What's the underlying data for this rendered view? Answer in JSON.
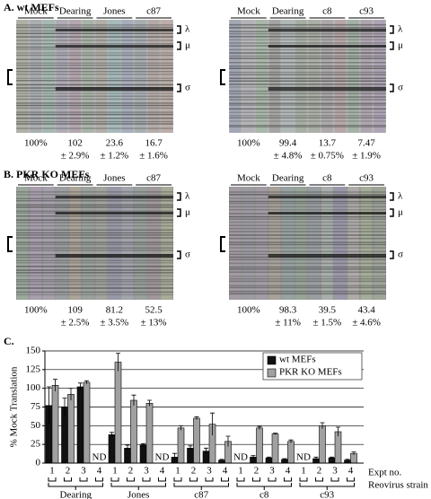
{
  "panels": [
    {
      "title": "A. wt MEFs",
      "bands": [
        "λ",
        "μ",
        "σ"
      ],
      "gels": [
        {
          "lanes": [
            {
              "label": "Mock",
              "value": "100%"
            },
            {
              "label": "Dearing",
              "value": "102",
              "error": "± 2.9%"
            },
            {
              "label": "Jones",
              "value": "23.6",
              "error": "± 1.2%"
            },
            {
              "label": "c87",
              "value": "16.7",
              "error": "± 1.6%"
            }
          ]
        },
        {
          "lanes": [
            {
              "label": "Mock",
              "value": "100%"
            },
            {
              "label": "Dearing",
              "value": "99.4",
              "error": "± 4.8%"
            },
            {
              "label": "c8",
              "value": "13.7",
              "error": "± 0.75%"
            },
            {
              "label": "c93",
              "value": "7.47",
              "error": "± 1.9%"
            }
          ]
        }
      ]
    },
    {
      "title": "B. PKR KO MEFs",
      "bands": [
        "λ",
        "μ",
        "σ"
      ],
      "gels": [
        {
          "lanes": [
            {
              "label": "Mock",
              "value": "100%"
            },
            {
              "label": "Dearing",
              "value": "109",
              "error": "± 2.5%"
            },
            {
              "label": "Jones",
              "value": "81.2",
              "error": "± 3.5%"
            },
            {
              "label": "c87",
              "value": "52.5",
              "error": "± 13%"
            }
          ]
        },
        {
          "lanes": [
            {
              "label": "Mock",
              "value": "100%"
            },
            {
              "label": "Dearing",
              "value": "98.3",
              "error": "± 11%"
            },
            {
              "label": "c8",
              "value": "39.5",
              "error": "± 1.5%"
            },
            {
              "label": "c93",
              "value": "43.4",
              "error": "± 4.6%"
            }
          ]
        }
      ]
    }
  ],
  "chart_data": {
    "type": "bar",
    "title": "C.",
    "ylabel": "% Mock Translation",
    "xlabel": "Expt no.",
    "group_axis_label": "Reovirus strain",
    "group_labels": [
      "Dearing",
      "Jones",
      "c87",
      "c8",
      "c93"
    ],
    "categories": [
      "1",
      "2",
      "3",
      "4",
      "1",
      "2",
      "3",
      "4",
      "1",
      "2",
      "3",
      "4",
      "1",
      "2",
      "3",
      "4",
      "1",
      "2",
      "3",
      "4"
    ],
    "notes": [
      null,
      null,
      null,
      "ND",
      null,
      null,
      null,
      "ND",
      null,
      null,
      null,
      null,
      "ND",
      null,
      null,
      null,
      "ND",
      null,
      null,
      null
    ],
    "series": [
      {
        "name": "wt MEFs",
        "color": "#111111",
        "values": [
          77,
          75,
          102,
          null,
          38,
          20,
          24,
          null,
          8,
          20,
          16,
          4,
          null,
          8,
          7,
          5,
          null,
          6,
          7,
          4
        ],
        "errors": [
          25,
          12,
          5,
          null,
          3,
          4,
          2,
          null,
          5,
          3,
          4,
          1,
          null,
          2,
          1,
          1,
          null,
          2,
          1,
          1
        ]
      },
      {
        "name": "PKR KO MEFs",
        "color": "#a0a0a0",
        "values": [
          104,
          92,
          108,
          null,
          135,
          84,
          80,
          null,
          47,
          60,
          52,
          29,
          null,
          47,
          39,
          29,
          null,
          50,
          42,
          13
        ],
        "errors": [
          8,
          8,
          2,
          null,
          12,
          7,
          4,
          null,
          3,
          2,
          15,
          7,
          null,
          2,
          1,
          2,
          null,
          4,
          6,
          2
        ]
      }
    ],
    "ylim": [
      0,
      150
    ],
    "yticks": [
      0,
      25,
      50,
      75,
      100,
      125,
      150
    ],
    "grid": true,
    "legend": "top-right"
  }
}
